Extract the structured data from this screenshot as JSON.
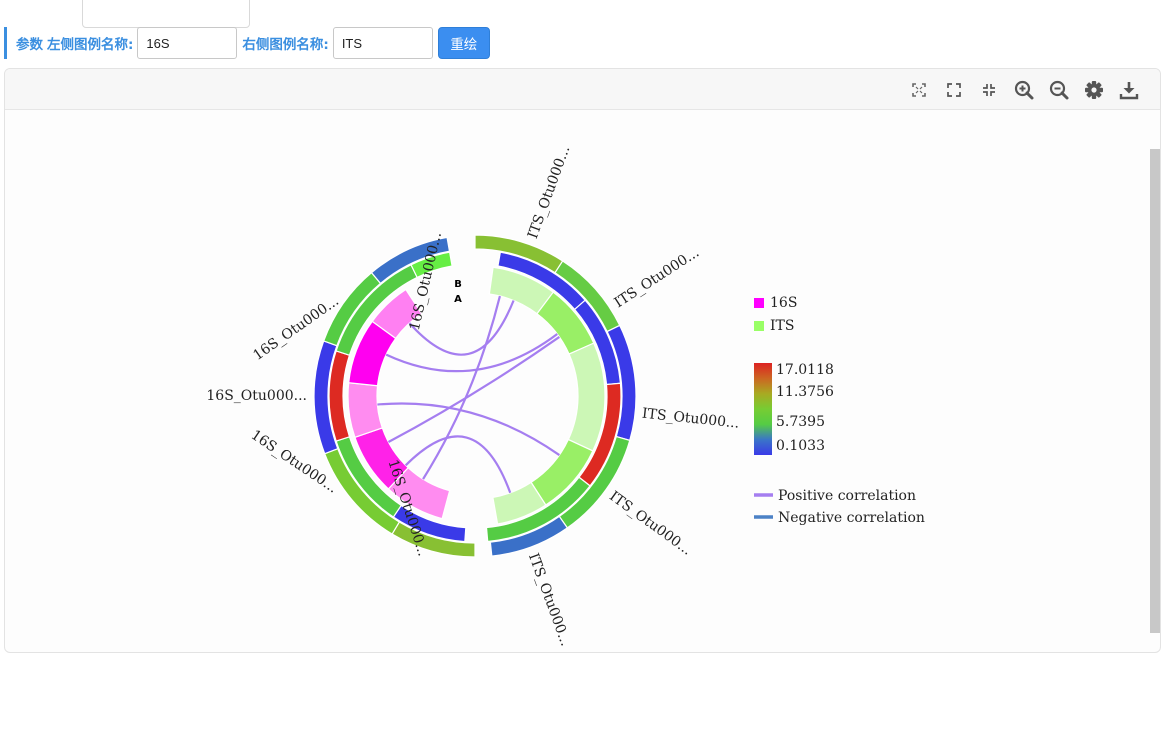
{
  "params": {
    "section_label": "参数",
    "left_legend_label": "左侧图例名称:",
    "left_legend_value": "16S",
    "right_legend_label": "右侧图例名称:",
    "right_legend_value": "ITS",
    "redraw_label": "重绘"
  },
  "toolbar": {
    "icons": [
      "fit-screen-icon",
      "fullscreen-icon",
      "exit-fullscreen-icon",
      "zoom-in-icon",
      "zoom-out-icon",
      "settings-icon",
      "download-icon"
    ]
  },
  "chart_data": {
    "type": "chord",
    "ring_labels": [
      "B",
      "A"
    ],
    "left_group": {
      "name": "16S",
      "color": "#ff00ff",
      "outer_labels": [
        "16S_Otu000...",
        "16S_Otu000...",
        "16S_Otu000...",
        "16S_Otu000...",
        "16S_Otu000..."
      ]
    },
    "right_group": {
      "name": "ITS",
      "color": "#99ff66",
      "outer_labels": [
        "ITS_Otu000...",
        "ITS_Otu000...",
        "ITS_Otu000...",
        "ITS_Otu000...",
        "ITS_Otu000..."
      ]
    },
    "color_scale": {
      "ticks": [
        "17.0118",
        "11.3756",
        "5.7395",
        "0.1033"
      ],
      "colors": [
        "#3a3ae8",
        "#3a75c8",
        "#55cc44",
        "#77cc33",
        "#a8aa22",
        "#cc6622",
        "#dd2222"
      ]
    },
    "legend": [
      {
        "label": "16S",
        "color": "#ff00ff"
      },
      {
        "label": "ITS",
        "color": "#99ff66"
      }
    ],
    "line_legend": [
      {
        "label": "Positive correlation",
        "color": "#a57ef0"
      },
      {
        "label": "Negative correlation",
        "color": "#4c82c6"
      }
    ]
  }
}
